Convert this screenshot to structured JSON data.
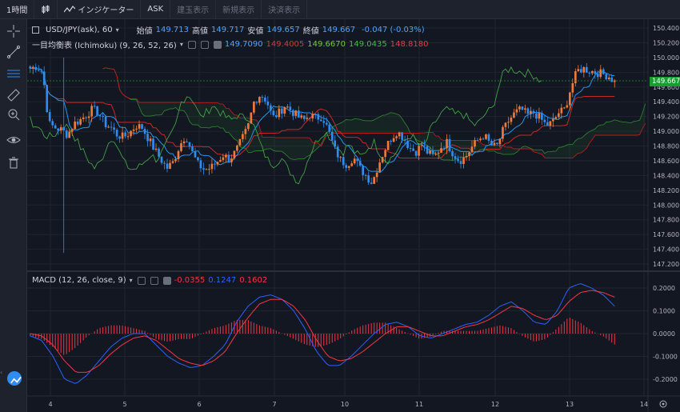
{
  "toolbar": {
    "timeframe": "1時間",
    "indicators": "インジケーター",
    "ask": "ASK",
    "tatedama": "建玉表示",
    "shinki": "新規表示",
    "kessai": "決済表示"
  },
  "legend": {
    "symbol": "USD/JPY(ask), 60",
    "open_label": "始値",
    "open": "149.713",
    "high_label": "高値",
    "high": "149.717",
    "low_label": "安値",
    "low": "149.657",
    "close_label": "終値",
    "close": "149.667",
    "change": "-0.047 (-0.03%)",
    "ichimoku_label": "一目均衡表 (Ichimoku) (9, 26, 52, 26)",
    "ichimoku_values": [
      "149.7090",
      "149.4005",
      "149.6670",
      "149.0435",
      "148.8180"
    ],
    "macd_label": "MACD (12, 26, close, 9)",
    "macd_values": [
      "-0.0355",
      "0.1247",
      "0.1602"
    ]
  },
  "current_price": {
    "value": "149.667",
    "below": "149.600"
  },
  "price_axis": [
    "150.400",
    "150.200",
    "150.000",
    "149.800",
    "149.600",
    "149.400",
    "149.200",
    "149.000",
    "148.800",
    "148.600",
    "148.400",
    "148.200",
    "148.000",
    "147.800",
    "147.600",
    "147.400",
    "147.200"
  ],
  "macd_axis": [
    "0.2000",
    "0.1000",
    "0.0000",
    "-0.1000",
    "-0.2000"
  ],
  "time_axis": [
    "4",
    "5",
    "6",
    "7",
    "10",
    "11",
    "12",
    "13",
    "14"
  ],
  "colors": {
    "up": "#ef7a3a",
    "down": "#2f8cf0",
    "kijun": "#c62828",
    "tenkan": "#2196f3",
    "chikou": "#43a047",
    "spanA": "#2e7d32",
    "spanB": "#b71c1c",
    "price_tag": "#1b9c2f"
  },
  "chart_data": [
    {
      "type": "candlestick",
      "title": "USD/JPY(ask), 60",
      "ylim": [
        147.15,
        150.45
      ],
      "x_ticks": [
        "4",
        "5",
        "6",
        "7",
        "10",
        "11",
        "12",
        "13",
        "14"
      ],
      "close_path": [
        149.85,
        149.88,
        149.8,
        149.1,
        149.05,
        149.02,
        148.95,
        149.1,
        149.15,
        149.22,
        149.3,
        149.25,
        149.1,
        149.05,
        148.95,
        148.92,
        148.98,
        149.08,
        149.05,
        148.9,
        148.75,
        148.62,
        148.5,
        148.58,
        148.8,
        148.95,
        148.72,
        148.55,
        148.48,
        148.5,
        148.58,
        148.68,
        148.62,
        148.72,
        148.88,
        149.05,
        149.4,
        149.5,
        149.42,
        149.18,
        149.25,
        149.35,
        149.28,
        149.2,
        149.15,
        149.22,
        149.18,
        149.2,
        149.0,
        148.75,
        148.6,
        148.55,
        148.65,
        148.5,
        148.4,
        148.3,
        148.55,
        148.75,
        148.9,
        149.0,
        148.92,
        148.78,
        148.72,
        148.82,
        148.7,
        148.65,
        148.78,
        148.85,
        148.7,
        148.6,
        148.65,
        148.78,
        148.88,
        148.95,
        148.82,
        148.78,
        149.0,
        149.15,
        149.25,
        149.3,
        149.22,
        149.25,
        149.18,
        149.08,
        149.12,
        149.25,
        149.3,
        149.6,
        149.82,
        149.85,
        149.82,
        149.8,
        149.78,
        149.75,
        149.67
      ],
      "series": [
        {
          "name": "Tenkan (9)",
          "value": 149.709
        },
        {
          "name": "Kijun (26)",
          "value": 149.4005
        },
        {
          "name": "Chikou",
          "value": 149.667
        },
        {
          "name": "Senkou A",
          "value": 149.0435
        },
        {
          "name": "Senkou B",
          "value": 148.818
        }
      ]
    },
    {
      "type": "line",
      "title": "MACD (12, 26, close, 9)",
      "ylim": [
        -0.24,
        0.24
      ],
      "series": [
        {
          "name": "Histogram",
          "last": -0.0355
        },
        {
          "name": "MACD",
          "last": 0.1247
        },
        {
          "name": "Signal",
          "last": 0.1602
        }
      ],
      "macd_path": [
        -0.01,
        -0.03,
        -0.1,
        -0.2,
        -0.22,
        -0.18,
        -0.12,
        -0.06,
        -0.02,
        0.0,
        0.0,
        -0.05,
        -0.1,
        -0.13,
        -0.15,
        -0.14,
        -0.1,
        -0.05,
        0.05,
        0.12,
        0.16,
        0.17,
        0.15,
        0.1,
        0.02,
        -0.08,
        -0.14,
        -0.14,
        -0.1,
        -0.05,
        0.0,
        0.04,
        0.05,
        0.03,
        -0.01,
        -0.02,
        0.0,
        0.02,
        0.04,
        0.05,
        0.08,
        0.12,
        0.14,
        0.1,
        0.05,
        0.04,
        0.1,
        0.2,
        0.22,
        0.2,
        0.17,
        0.12
      ],
      "signal_path": [
        0.0,
        -0.01,
        -0.05,
        -0.12,
        -0.17,
        -0.17,
        -0.14,
        -0.09,
        -0.05,
        -0.02,
        -0.01,
        -0.03,
        -0.07,
        -0.11,
        -0.13,
        -0.14,
        -0.12,
        -0.08,
        0.0,
        0.07,
        0.13,
        0.15,
        0.15,
        0.12,
        0.06,
        -0.03,
        -0.1,
        -0.12,
        -0.11,
        -0.08,
        -0.04,
        0.0,
        0.03,
        0.03,
        0.01,
        -0.01,
        -0.01,
        0.01,
        0.03,
        0.04,
        0.06,
        0.09,
        0.12,
        0.11,
        0.08,
        0.06,
        0.08,
        0.14,
        0.18,
        0.19,
        0.18,
        0.16
      ]
    }
  ]
}
